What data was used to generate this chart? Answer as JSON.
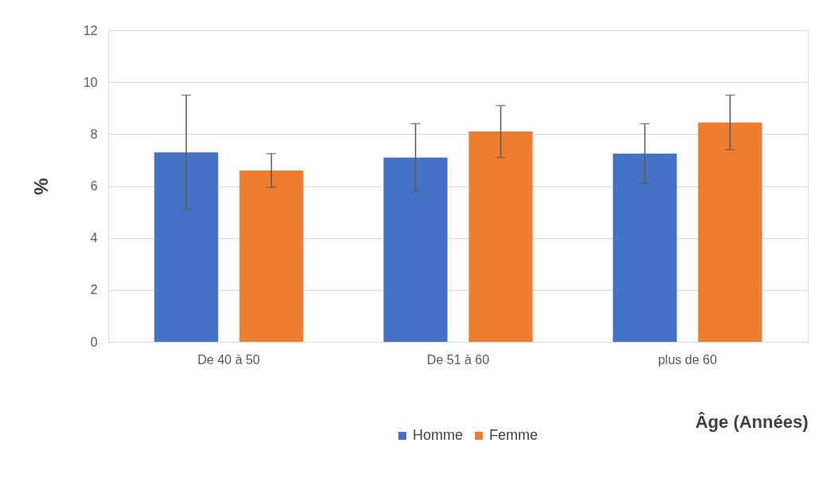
{
  "chart_data": {
    "type": "bar",
    "xlabel": "Âge (Années)",
    "ylabel": "%",
    "categories": [
      "De 40 à 50",
      "De 51 à 60",
      "plus de 60"
    ],
    "series": [
      {
        "name": "Homme",
        "color": "#4472c4",
        "values": [
          7.3,
          7.1,
          7.25
        ],
        "errors": [
          [
            5.1,
            9.5
          ],
          [
            5.8,
            8.4
          ],
          [
            6.1,
            8.4
          ]
        ]
      },
      {
        "name": "Femme",
        "color": "#ed7d31",
        "values": [
          6.6,
          8.1,
          8.45
        ],
        "errors": [
          [
            5.95,
            7.25
          ],
          [
            7.1,
            9.1
          ],
          [
            7.4,
            9.5
          ]
        ]
      }
    ],
    "ylim": [
      0,
      12
    ],
    "yticks": [
      0,
      2,
      4,
      6,
      8,
      10,
      12
    ],
    "grid": "y",
    "legend": "bottom"
  }
}
